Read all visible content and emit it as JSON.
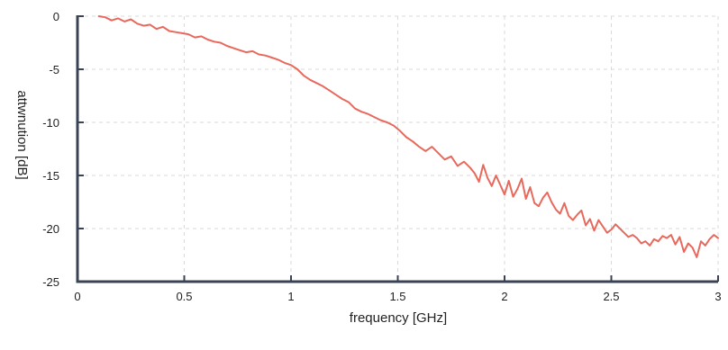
{
  "chart_data": {
    "type": "line",
    "title": "",
    "xlabel": "frequency [GHz]",
    "ylabel": "attwnution [dB]",
    "xlim": [
      0,
      3
    ],
    "ylim": [
      -25,
      0
    ],
    "x_ticks": [
      0,
      0.5,
      1,
      1.5,
      2,
      2.5,
      3
    ],
    "x_tick_labels": [
      "0",
      "0.5",
      "1",
      "1.5",
      "2",
      "2.5",
      "3"
    ],
    "y_ticks": [
      0,
      -5,
      -10,
      -15,
      -20,
      -25
    ],
    "y_tick_labels": [
      "0",
      "-5",
      "-10",
      "-15",
      "-20",
      "-25"
    ],
    "grid": true,
    "colors": {
      "line": "#e8695c",
      "axis": "#3a4356",
      "grid": "#d9d9d9"
    },
    "series": [
      {
        "x": [
          0.1,
          0.13,
          0.16,
          0.19,
          0.22,
          0.25,
          0.28,
          0.31,
          0.34,
          0.37,
          0.4,
          0.43,
          0.46,
          0.49,
          0.52,
          0.55,
          0.58,
          0.61,
          0.64,
          0.67,
          0.7,
          0.73,
          0.76,
          0.79,
          0.82,
          0.85,
          0.88,
          0.91,
          0.94,
          0.97,
          1.0,
          1.03,
          1.06,
          1.09,
          1.12,
          1.15,
          1.18,
          1.21,
          1.24,
          1.27,
          1.3,
          1.33,
          1.36,
          1.39,
          1.42,
          1.45,
          1.48,
          1.51,
          1.54,
          1.57,
          1.6,
          1.63,
          1.66,
          1.69,
          1.72,
          1.75,
          1.78,
          1.81,
          1.84,
          1.86,
          1.88,
          1.9,
          1.92,
          1.94,
          1.96,
          1.98,
          2.0,
          2.02,
          2.04,
          2.06,
          2.08,
          2.1,
          2.12,
          2.14,
          2.16,
          2.18,
          2.2,
          2.22,
          2.24,
          2.26,
          2.28,
          2.3,
          2.32,
          2.34,
          2.36,
          2.38,
          2.4,
          2.42,
          2.44,
          2.46,
          2.48,
          2.5,
          2.52,
          2.54,
          2.56,
          2.58,
          2.6,
          2.62,
          2.64,
          2.66,
          2.68,
          2.7,
          2.72,
          2.74,
          2.76,
          2.78,
          2.8,
          2.82,
          2.84,
          2.86,
          2.88,
          2.9,
          2.92,
          2.94,
          2.96,
          2.98,
          3.0
        ],
        "values": [
          0.0,
          -0.1,
          -0.4,
          -0.2,
          -0.5,
          -0.3,
          -0.7,
          -0.9,
          -0.8,
          -1.2,
          -1.0,
          -1.4,
          -1.5,
          -1.6,
          -1.7,
          -2.0,
          -1.9,
          -2.2,
          -2.4,
          -2.5,
          -2.8,
          -3.0,
          -3.2,
          -3.4,
          -3.3,
          -3.6,
          -3.7,
          -3.9,
          -4.1,
          -4.4,
          -4.6,
          -5.0,
          -5.6,
          -6.0,
          -6.3,
          -6.6,
          -7.0,
          -7.4,
          -7.8,
          -8.1,
          -8.7,
          -9.0,
          -9.2,
          -9.5,
          -9.8,
          -10.0,
          -10.3,
          -10.8,
          -11.4,
          -11.8,
          -12.3,
          -12.7,
          -12.3,
          -12.9,
          -13.5,
          -13.2,
          -14.1,
          -13.7,
          -14.3,
          -14.8,
          -15.6,
          -14.0,
          -15.2,
          -16.0,
          -15.0,
          -15.9,
          -16.8,
          -15.5,
          -17.0,
          -16.3,
          -15.3,
          -17.2,
          -16.1,
          -17.6,
          -17.9,
          -17.1,
          -16.6,
          -17.5,
          -18.2,
          -18.6,
          -17.6,
          -18.8,
          -19.2,
          -18.7,
          -18.3,
          -19.7,
          -19.1,
          -20.2,
          -19.2,
          -19.8,
          -20.4,
          -20.1,
          -19.6,
          -20.0,
          -20.4,
          -20.8,
          -20.6,
          -20.9,
          -21.4,
          -21.2,
          -21.6,
          -21.0,
          -21.2,
          -20.7,
          -20.9,
          -20.6,
          -21.5,
          -20.8,
          -22.2,
          -21.4,
          -21.8,
          -22.7,
          -21.2,
          -21.6,
          -21.0,
          -20.6,
          -20.9
        ]
      }
    ]
  }
}
